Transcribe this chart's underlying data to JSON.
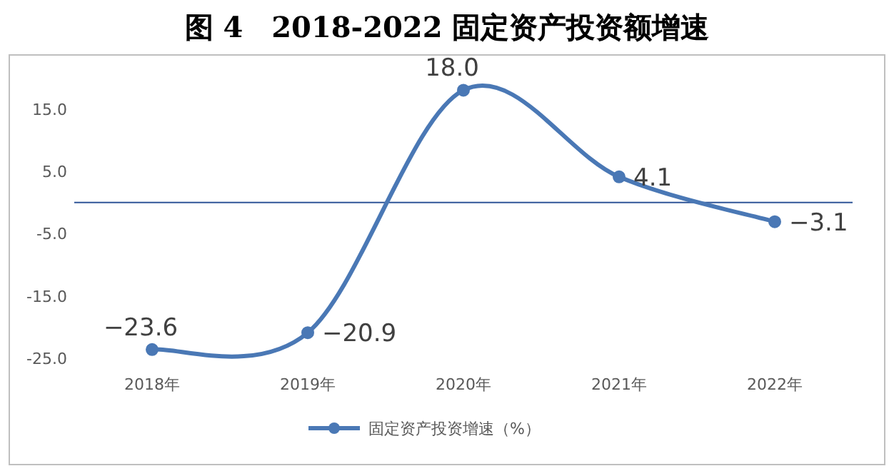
{
  "chart_data": {
    "type": "line",
    "title": "图 4　2018-2022 固定资产投资额增速",
    "categories": [
      "2018年",
      "2019年",
      "2020年",
      "2021年",
      "2022年"
    ],
    "series": [
      {
        "name": "固定资产投资增速（%）",
        "color": "#4a78b5",
        "values": [
          -23.6,
          -20.9,
          18.0,
          4.1,
          -3.1
        ],
        "value_labels": [
          "−23.6",
          "−20.9",
          "18.0",
          "4.1",
          "−3.1"
        ]
      }
    ],
    "ref_lines": [
      {
        "axis": "y",
        "value": 0,
        "color": "#2f5597"
      }
    ],
    "ylim": [
      -25,
      24
    ],
    "yticks": [
      {
        "value": -25,
        "label": "-25.0"
      },
      {
        "value": -15,
        "label": "-15.0"
      },
      {
        "value": -5,
        "label": "-5.0"
      },
      {
        "value": 5,
        "label": "5.0"
      },
      {
        "value": 15,
        "label": "15.0"
      }
    ],
    "legend": "bottom",
    "marker": "circle",
    "line_style": "solid",
    "grid": false
  }
}
